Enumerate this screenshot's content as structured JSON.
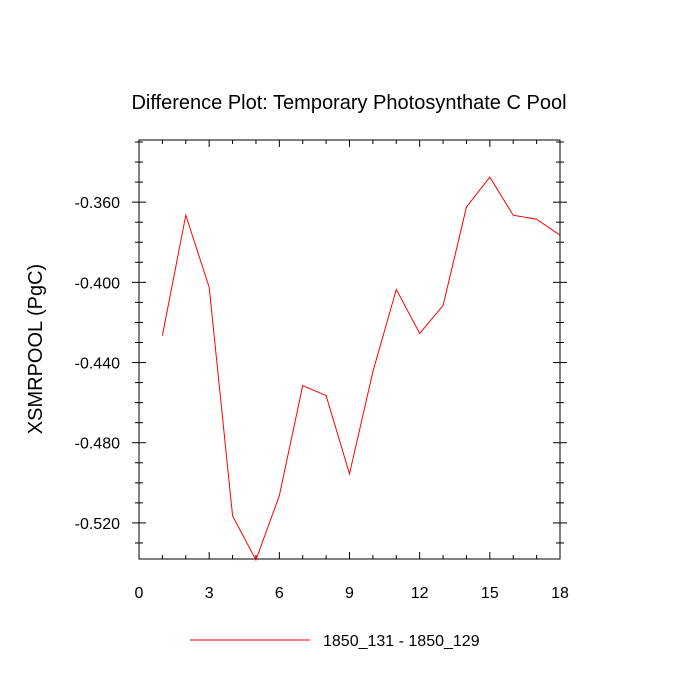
{
  "chart_data": {
    "type": "line",
    "title": "Difference Plot: Temporary Photosynthate C Pool",
    "ylabel": "XSMRPOOL  (PgC)",
    "xlabel": "",
    "xlim": [
      0,
      18
    ],
    "ylim": [
      -0.538,
      -0.329
    ],
    "x_ticks": [
      0,
      3,
      6,
      9,
      12,
      15,
      18
    ],
    "x_tick_labels": [
      "0",
      "3",
      "6",
      "9",
      "12",
      "15",
      "18"
    ],
    "y_ticks": [
      -0.36,
      -0.4,
      -0.44,
      -0.48,
      -0.52
    ],
    "y_tick_labels": [
      "-0.360",
      "-0.400",
      "-0.440",
      "-0.480",
      "-0.520"
    ],
    "grid": false,
    "legend_position": "bottom",
    "series": [
      {
        "name": "1850_131 - 1850_129",
        "color": "#ff0000",
        "x": [
          1,
          2,
          3,
          4,
          5,
          6,
          7,
          8,
          9,
          10,
          11,
          12,
          13,
          14,
          15,
          16,
          17,
          18
        ],
        "y": [
          -0.4265,
          -0.3665,
          -0.4025,
          -0.5165,
          -0.5385,
          -0.5065,
          -0.4515,
          -0.4565,
          -0.4955,
          -0.4445,
          -0.4035,
          -0.4255,
          -0.4115,
          -0.3625,
          -0.3475,
          -0.3665,
          -0.3685,
          -0.3765
        ]
      }
    ]
  }
}
